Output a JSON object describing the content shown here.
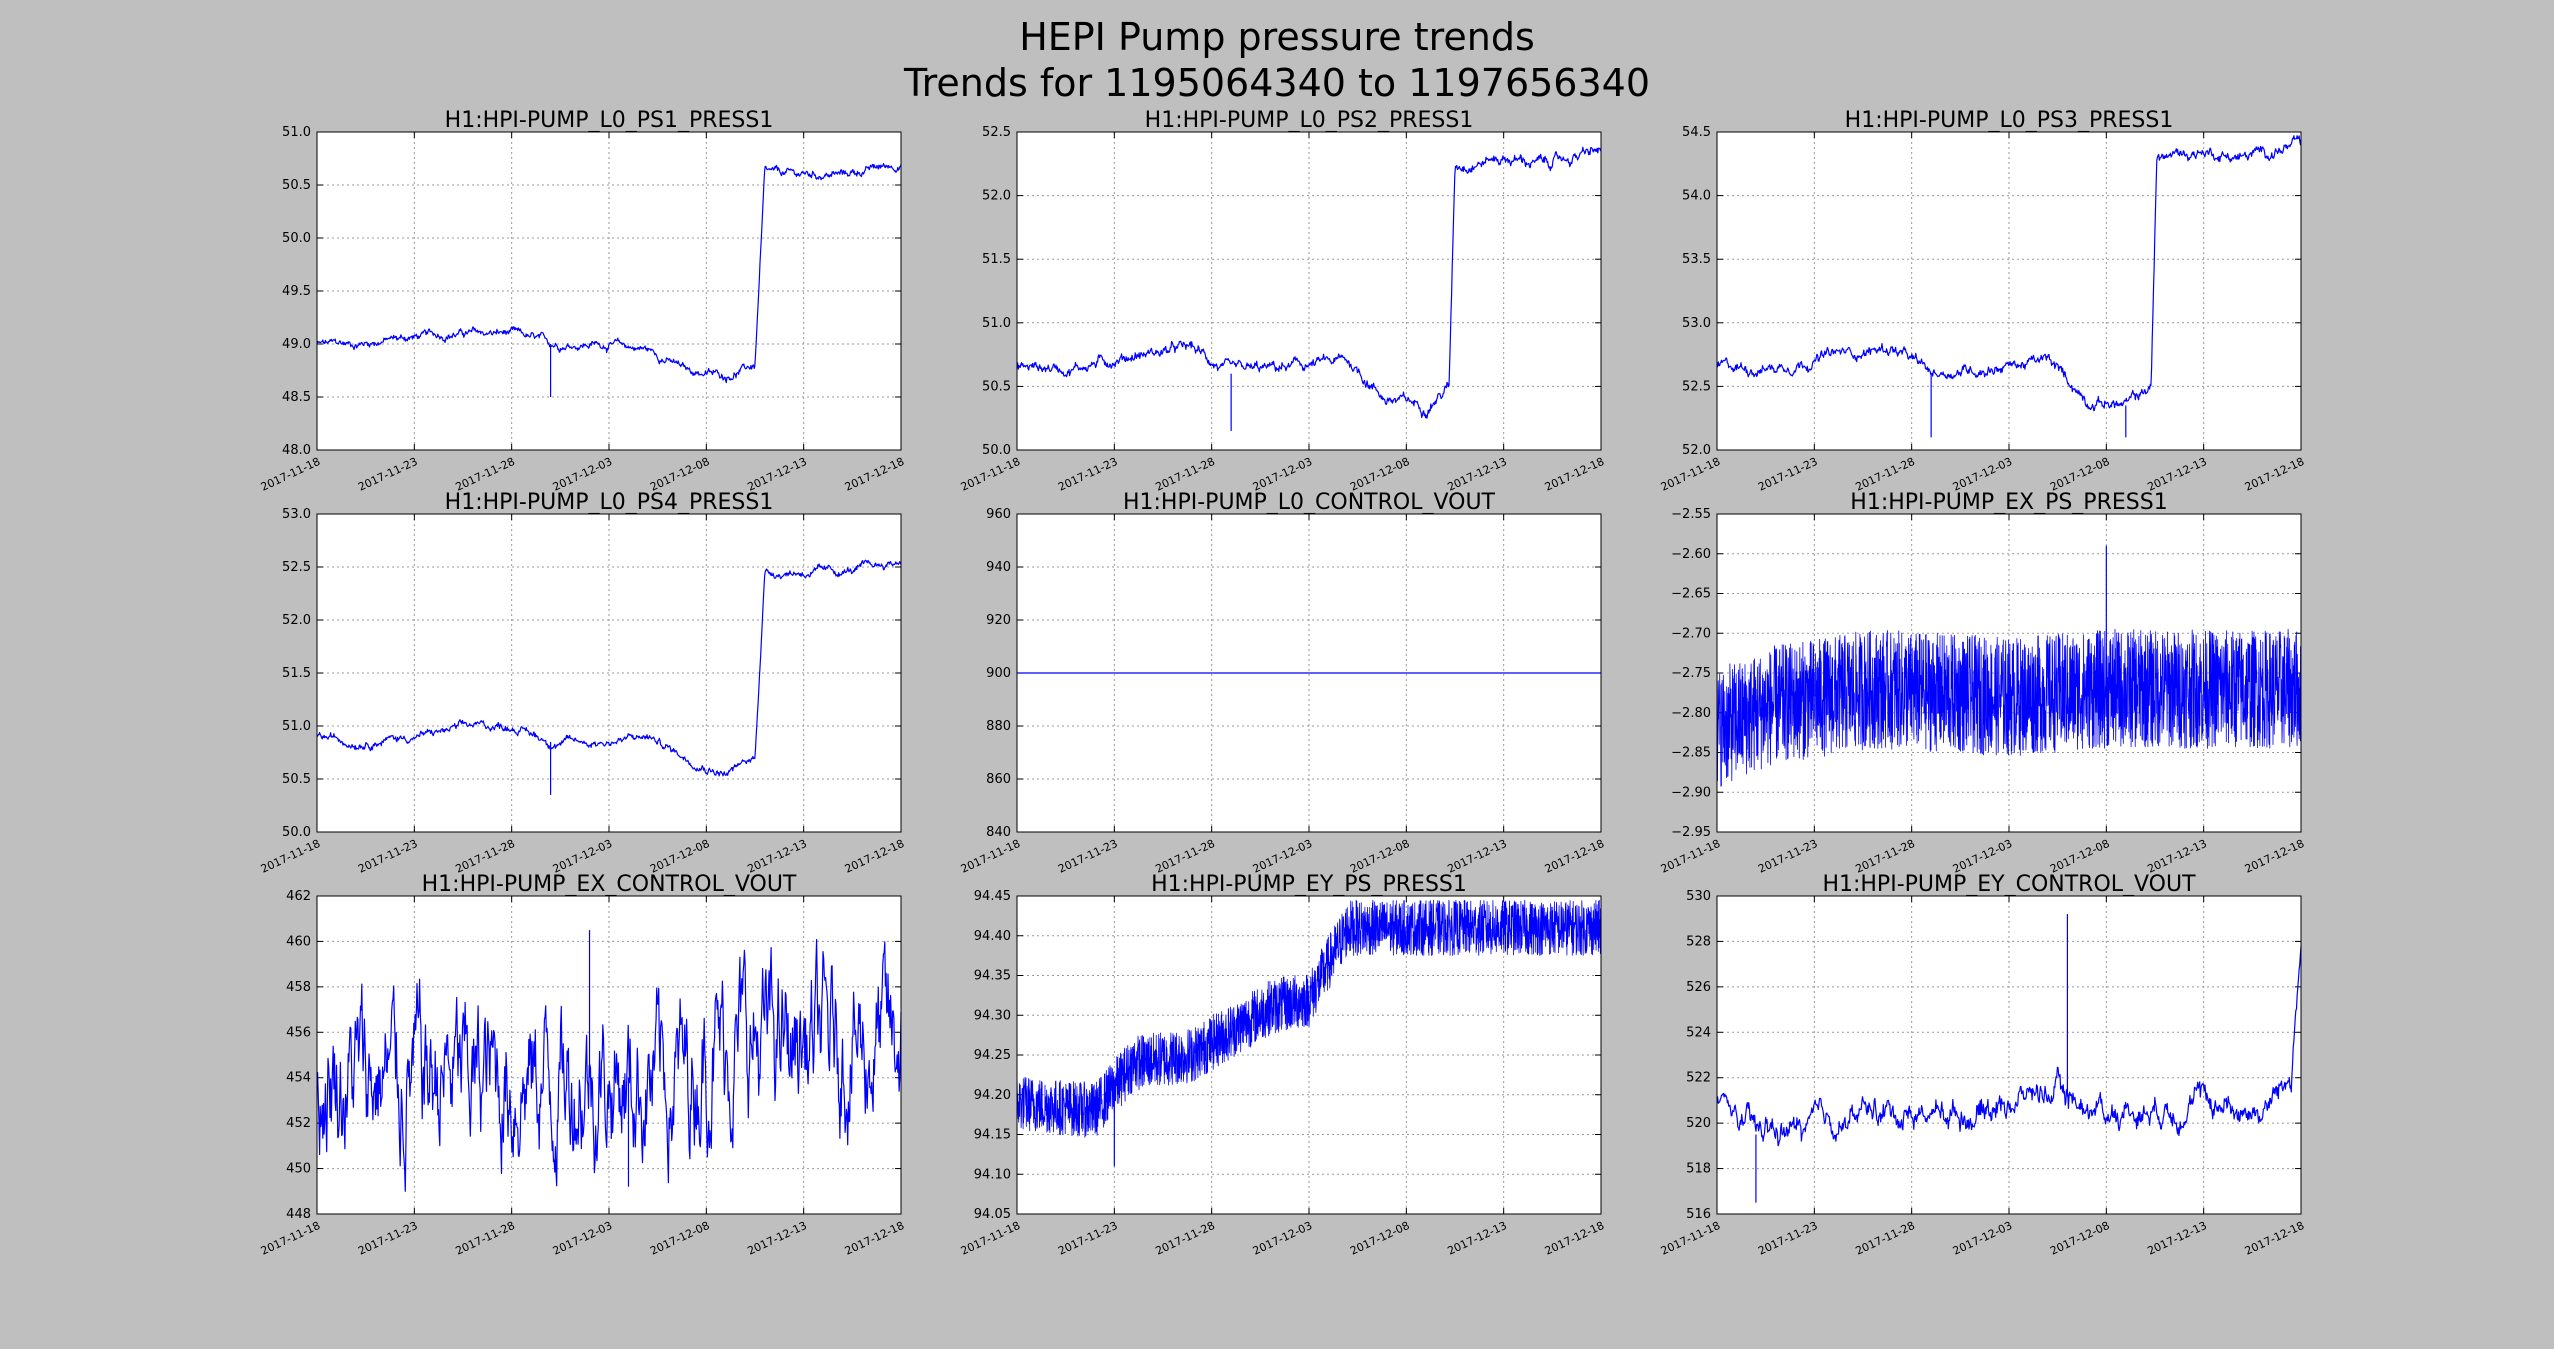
{
  "figure": {
    "title_line1": "HEPI Pump pressure trends",
    "title_line2": "Trends for 1195064340 to 1197656340",
    "background": "#bfbfbf",
    "series_color": "#0000ff",
    "grid": true
  },
  "chart_data": [
    {
      "type": "line",
      "title": "H1:HPI-PUMP_L0_PS1_PRESS1",
      "x_ticks": [
        "2017-11-18",
        "2017-11-23",
        "2017-11-28",
        "2017-12-03",
        "2017-12-08",
        "2017-12-13",
        "2017-12-18"
      ],
      "xlim": [
        "2017-11-18",
        "2017-12-18"
      ],
      "ylim": [
        48.0,
        51.0
      ],
      "y_ticks": [
        "48.0",
        "48.5",
        "49.0",
        "49.5",
        "50.0",
        "50.5",
        "51.0"
      ],
      "shape": "step",
      "points": [
        [
          "2017-11-18",
          49.0
        ],
        [
          "2017-11-20",
          49.0
        ],
        [
          "2017-11-22",
          49.05
        ],
        [
          "2017-11-25",
          49.1
        ],
        [
          "2017-11-28",
          49.1
        ],
        [
          "2017-11-30",
          49.0
        ],
        [
          "2017-12-03",
          49.0
        ],
        [
          "2017-12-05",
          48.95
        ],
        [
          "2017-12-07",
          48.75
        ],
        [
          "2017-12-09",
          48.7
        ],
        [
          "2017-12-10.5",
          48.8
        ],
        [
          "2017-12-11",
          50.6
        ],
        [
          "2017-12-13",
          50.6
        ],
        [
          "2017-12-15",
          50.6
        ],
        [
          "2017-12-18",
          50.7
        ]
      ],
      "noise": 0.06,
      "spikes": [
        [
          "2017-11-30",
          48.5
        ]
      ]
    },
    {
      "type": "line",
      "title": "H1:HPI-PUMP_L0_PS2_PRESS1",
      "x_ticks": [
        "2017-11-18",
        "2017-11-23",
        "2017-11-28",
        "2017-12-03",
        "2017-12-08",
        "2017-12-13",
        "2017-12-18"
      ],
      "xlim": [
        "2017-11-18",
        "2017-12-18"
      ],
      "ylim": [
        50.0,
        52.5
      ],
      "y_ticks": [
        "50.0",
        "50.5",
        "51.0",
        "51.5",
        "52.0",
        "52.5"
      ],
      "shape": "step",
      "points": [
        [
          "2017-11-18",
          50.65
        ],
        [
          "2017-11-21",
          50.65
        ],
        [
          "2017-11-24",
          50.75
        ],
        [
          "2017-11-27",
          50.8
        ],
        [
          "2017-11-29",
          50.6
        ],
        [
          "2017-12-02",
          50.65
        ],
        [
          "2017-12-05",
          50.7
        ],
        [
          "2017-12-07",
          50.4
        ],
        [
          "2017-12-09",
          50.35
        ],
        [
          "2017-12-10.2",
          50.5
        ],
        [
          "2017-12-10.5",
          52.25
        ],
        [
          "2017-12-13",
          52.3
        ],
        [
          "2017-12-15",
          52.25
        ],
        [
          "2017-12-18",
          52.35
        ]
      ],
      "noise": 0.07,
      "spikes": [
        [
          "2017-11-29",
          50.15
        ]
      ]
    },
    {
      "type": "line",
      "title": "H1:HPI-PUMP_L0_PS3_PRESS1",
      "x_ticks": [
        "2017-11-18",
        "2017-11-23",
        "2017-11-28",
        "2017-12-03",
        "2017-12-08",
        "2017-12-13",
        "2017-12-18"
      ],
      "xlim": [
        "2017-11-18",
        "2017-12-18"
      ],
      "ylim": [
        52.0,
        54.5
      ],
      "y_ticks": [
        "52.0",
        "52.5",
        "53.0",
        "53.5",
        "54.0",
        "54.5"
      ],
      "shape": "step",
      "points": [
        [
          "2017-11-18",
          52.65
        ],
        [
          "2017-11-21",
          52.65
        ],
        [
          "2017-11-24",
          52.75
        ],
        [
          "2017-11-27",
          52.8
        ],
        [
          "2017-11-29",
          52.6
        ],
        [
          "2017-12-02",
          52.65
        ],
        [
          "2017-12-05",
          52.7
        ],
        [
          "2017-12-07",
          52.4
        ],
        [
          "2017-12-09",
          52.35
        ],
        [
          "2017-12-10.3",
          52.5
        ],
        [
          "2017-12-10.6",
          54.3
        ],
        [
          "2017-12-13",
          54.35
        ],
        [
          "2017-12-15",
          54.3
        ],
        [
          "2017-12-18",
          54.4
        ]
      ],
      "noise": 0.07,
      "spikes": [
        [
          "2017-11-29",
          52.1
        ],
        [
          "2017-12-09",
          52.1
        ]
      ]
    },
    {
      "type": "line",
      "title": "H1:HPI-PUMP_L0_PS4_PRESS1",
      "x_ticks": [
        "2017-11-18",
        "2017-11-23",
        "2017-11-28",
        "2017-12-03",
        "2017-12-08",
        "2017-12-13",
        "2017-12-18"
      ],
      "xlim": [
        "2017-11-18",
        "2017-12-18"
      ],
      "ylim": [
        50.0,
        53.0
      ],
      "y_ticks": [
        "50.0",
        "50.5",
        "51.0",
        "51.5",
        "52.0",
        "52.5",
        "53.0"
      ],
      "shape": "step",
      "points": [
        [
          "2017-11-18",
          50.9
        ],
        [
          "2017-11-20",
          50.85
        ],
        [
          "2017-11-23",
          50.9
        ],
        [
          "2017-11-26",
          51.0
        ],
        [
          "2017-11-28",
          51.0
        ],
        [
          "2017-11-30",
          50.85
        ],
        [
          "2017-12-03",
          50.85
        ],
        [
          "2017-12-05",
          50.9
        ],
        [
          "2017-12-07",
          50.7
        ],
        [
          "2017-12-09",
          50.55
        ],
        [
          "2017-12-10.5",
          50.7
        ],
        [
          "2017-12-11",
          52.45
        ],
        [
          "2017-12-13",
          52.45
        ],
        [
          "2017-12-15",
          52.45
        ],
        [
          "2017-12-18",
          52.55
        ]
      ],
      "noise": 0.06,
      "spikes": [
        [
          "2017-11-30",
          50.35
        ]
      ]
    },
    {
      "type": "line",
      "title": "H1:HPI-PUMP_L0_CONTROL_VOUT",
      "x_ticks": [
        "2017-11-18",
        "2017-11-23",
        "2017-11-28",
        "2017-12-03",
        "2017-12-08",
        "2017-12-13",
        "2017-12-18"
      ],
      "xlim": [
        "2017-11-18",
        "2017-12-18"
      ],
      "ylim": [
        840,
        960
      ],
      "y_ticks": [
        "840",
        "860",
        "880",
        "900",
        "920",
        "940",
        "960"
      ],
      "shape": "flat",
      "points": [
        [
          "2017-11-18",
          900
        ],
        [
          "2017-12-18",
          900
        ]
      ],
      "noise": 0,
      "spikes": []
    },
    {
      "type": "line",
      "title": "H1:HPI-PUMP_EX_PS_PRESS1",
      "x_ticks": [
        "2017-11-18",
        "2017-11-23",
        "2017-11-28",
        "2017-12-03",
        "2017-12-08",
        "2017-12-13",
        "2017-12-18"
      ],
      "xlim": [
        "2017-11-18",
        "2017-12-18"
      ],
      "ylim": [
        -2.95,
        -2.55
      ],
      "y_ticks": [
        "−2.95",
        "−2.90",
        "−2.85",
        "−2.80",
        "−2.75",
        "−2.70",
        "−2.65",
        "−2.60",
        "−2.55"
      ],
      "shape": "band",
      "points": [
        [
          "2017-11-18",
          -2.82
        ],
        [
          "2017-11-21",
          -2.79
        ],
        [
          "2017-11-26",
          -2.77
        ],
        [
          "2017-12-03",
          -2.78
        ],
        [
          "2017-12-08",
          -2.77
        ],
        [
          "2017-12-18",
          -2.77
        ]
      ],
      "noise": 0.075,
      "spikes": [
        [
          "2017-12-08",
          -2.59
        ]
      ]
    },
    {
      "type": "line",
      "title": "H1:HPI-PUMP_EX_CONTROL_VOUT",
      "x_ticks": [
        "2017-11-18",
        "2017-11-23",
        "2017-11-28",
        "2017-12-03",
        "2017-12-08",
        "2017-12-13",
        "2017-12-18"
      ],
      "xlim": [
        "2017-11-18",
        "2017-12-18"
      ],
      "ylim": [
        448,
        462
      ],
      "y_ticks": [
        "448",
        "450",
        "452",
        "454",
        "456",
        "458",
        "460",
        "462"
      ],
      "shape": "wild",
      "points": [
        [
          "2017-11-18",
          454
        ],
        [
          "2017-12-07",
          454
        ],
        [
          "2017-12-08",
          455.5
        ],
        [
          "2017-12-18",
          455.5
        ]
      ],
      "noise": 4.5,
      "spikes": [
        [
          "2017-12-02",
          460.5
        ],
        [
          "2017-12-04",
          449.2
        ]
      ]
    },
    {
      "type": "line",
      "title": "H1:HPI-PUMP_EY_PS_PRESS1",
      "x_ticks": [
        "2017-11-18",
        "2017-11-23",
        "2017-11-28",
        "2017-12-03",
        "2017-12-08",
        "2017-12-13",
        "2017-12-18"
      ],
      "xlim": [
        "2017-11-18",
        "2017-12-18"
      ],
      "ylim": [
        94.05,
        94.45
      ],
      "y_ticks": [
        "94.05",
        "94.10",
        "94.15",
        "94.20",
        "94.25",
        "94.30",
        "94.35",
        "94.40",
        "94.45"
      ],
      "shape": "band",
      "points": [
        [
          "2017-11-18",
          94.19
        ],
        [
          "2017-11-22",
          94.18
        ],
        [
          "2017-11-24",
          94.24
        ],
        [
          "2017-11-27",
          94.25
        ],
        [
          "2017-12-01",
          94.31
        ],
        [
          "2017-12-03",
          94.32
        ],
        [
          "2017-12-05",
          94.41
        ],
        [
          "2017-12-18",
          94.41
        ]
      ],
      "noise": 0.035,
      "spikes": [
        [
          "2017-11-23",
          94.11
        ]
      ]
    },
    {
      "type": "line",
      "title": "H1:HPI-PUMP_EY_CONTROL_VOUT",
      "x_ticks": [
        "2017-11-18",
        "2017-11-23",
        "2017-11-28",
        "2017-12-03",
        "2017-12-08",
        "2017-12-13",
        "2017-12-18"
      ],
      "xlim": [
        "2017-11-18",
        "2017-12-18"
      ],
      "ylim": [
        516,
        530
      ],
      "y_ticks": [
        "516",
        "518",
        "520",
        "522",
        "524",
        "526",
        "528",
        "530"
      ],
      "shape": "step",
      "points": [
        [
          "2017-11-18",
          521
        ],
        [
          "2017-11-20",
          519.5
        ],
        [
          "2017-11-23",
          519.8
        ],
        [
          "2017-11-26",
          520.5
        ],
        [
          "2017-12-01",
          520.5
        ],
        [
          "2017-12-05",
          521.5
        ],
        [
          "2017-12-08",
          520.5
        ],
        [
          "2017-12-13",
          521
        ],
        [
          "2017-12-16",
          520.5
        ],
        [
          "2017-12-17.5",
          522
        ],
        [
          "2017-12-18",
          528
        ]
      ],
      "noise": 0.9,
      "spikes": [
        [
          "2017-11-20",
          516.5
        ],
        [
          "2017-12-06",
          529.2
        ]
      ]
    }
  ]
}
